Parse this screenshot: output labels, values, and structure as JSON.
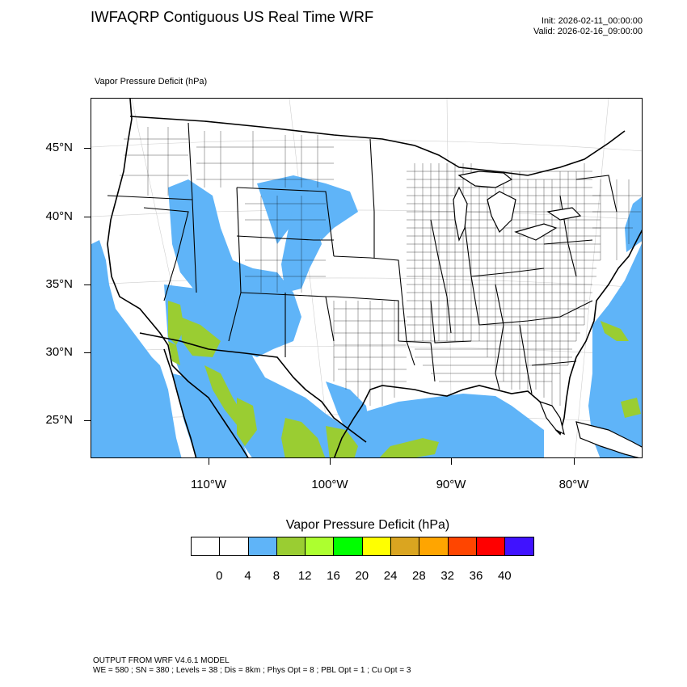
{
  "header": {
    "title": "IWFAQRP Contiguous US Real Time WRF",
    "init": "Init: 2026-02-11_00:00:00",
    "valid": "Valid: 2026-02-16_09:00:00"
  },
  "field": {
    "label": "Vapor Pressure Deficit   (hPa)"
  },
  "map": {
    "lat_labels": [
      "45°N",
      "40°N",
      "35°N",
      "30°N",
      "25°N"
    ],
    "lon_labels": [
      "110°W",
      "100°W",
      "90°W",
      "80°W"
    ],
    "colors": {
      "ocean_light_blue": "#5fb4f8",
      "mid_green": "#9acd32",
      "border": "#000000"
    }
  },
  "colorbar": {
    "title": "Vapor Pressure Deficit  (hPa)",
    "colors": [
      "#ffffff",
      "#ffffff",
      "#5fb4f8",
      "#9acd32",
      "#adff2f",
      "#00ff00",
      "#ffff00",
      "#daa520",
      "#ffa500",
      "#ff4500",
      "#ff0000",
      "#4012ff"
    ],
    "labels": [
      "0",
      "4",
      "8",
      "12",
      "16",
      "20",
      "24",
      "28",
      "32",
      "36",
      "40"
    ]
  },
  "footer": {
    "line1": "OUTPUT FROM WRF V4.6.1 MODEL",
    "line2": "WE = 580 ; SN = 380 ; Levels = 38 ; Dis = 8km ; Phys Opt = 8 ; PBL Opt = 1 ; Cu Opt = 3"
  }
}
